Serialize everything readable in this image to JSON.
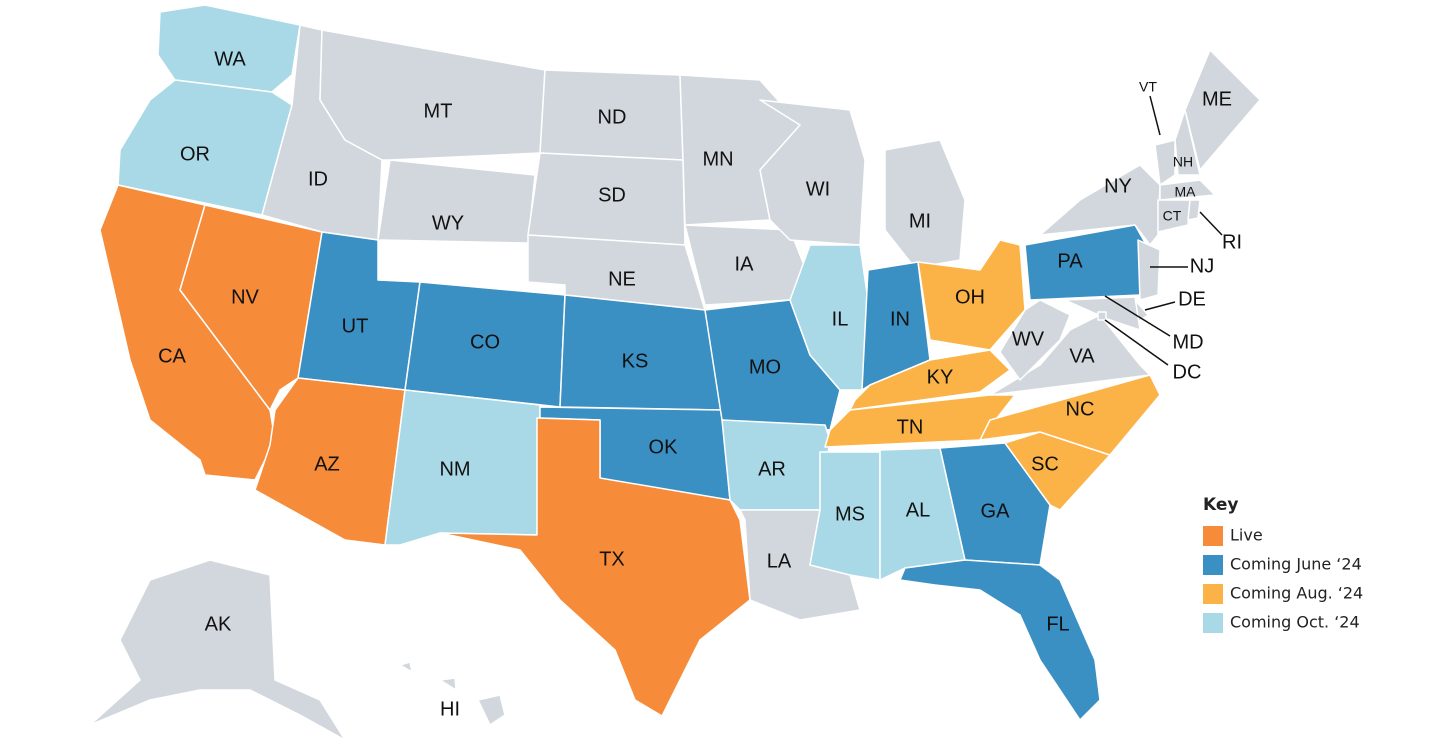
{
  "map": {
    "default_color": "#d1d7dc",
    "states": [
      {
        "label": "WA",
        "status": 3
      },
      {
        "label": "OR",
        "status": 3
      },
      {
        "label": "CA",
        "status": 0
      },
      {
        "label": "NV",
        "status": 0
      },
      {
        "label": "ID",
        "status": null
      },
      {
        "label": "MT",
        "status": null
      },
      {
        "label": "WY",
        "status": null
      },
      {
        "label": "UT",
        "status": 1
      },
      {
        "label": "CO",
        "status": 1
      },
      {
        "label": "AZ",
        "status": 0
      },
      {
        "label": "NM",
        "status": 3
      },
      {
        "label": "ND",
        "status": null
      },
      {
        "label": "SD",
        "status": null
      },
      {
        "label": "NE",
        "status": null
      },
      {
        "label": "KS",
        "status": 1
      },
      {
        "label": "OK",
        "status": 1
      },
      {
        "label": "TX",
        "status": 0
      },
      {
        "label": "MN",
        "status": null
      },
      {
        "label": "IA",
        "status": null
      },
      {
        "label": "MO",
        "status": 1
      },
      {
        "label": "AR",
        "status": 3
      },
      {
        "label": "LA",
        "status": null
      },
      {
        "label": "WI",
        "status": null
      },
      {
        "label": "IL",
        "status": 3
      },
      {
        "label": "MI",
        "status": null
      },
      {
        "label": "IN",
        "status": 1
      },
      {
        "label": "OH",
        "status": 2
      },
      {
        "label": "KY",
        "status": 2
      },
      {
        "label": "TN",
        "status": 2
      },
      {
        "label": "MS",
        "status": 3
      },
      {
        "label": "AL",
        "status": 3
      },
      {
        "label": "GA",
        "status": 1
      },
      {
        "label": "FL",
        "status": 1
      },
      {
        "label": "SC",
        "status": 2
      },
      {
        "label": "NC",
        "status": 2
      },
      {
        "label": "VA",
        "status": null
      },
      {
        "label": "WV",
        "status": null
      },
      {
        "label": "PA",
        "status": 1
      },
      {
        "label": "NY",
        "status": null
      },
      {
        "label": "NJ",
        "status": null
      },
      {
        "label": "DE",
        "status": null
      },
      {
        "label": "MD",
        "status": null
      },
      {
        "label": "VT",
        "status": null
      },
      {
        "label": "NH",
        "status": null
      },
      {
        "label": "ME",
        "status": null
      },
      {
        "label": "MA",
        "status": null
      },
      {
        "label": "CT",
        "status": null
      },
      {
        "label": "RI",
        "status": null
      },
      {
        "label": "AK",
        "status": null
      },
      {
        "label": "HI",
        "status": null
      },
      {
        "label": "DC",
        "status": null
      }
    ],
    "key": {
      "title": "Key",
      "items": [
        {
          "label": "Live",
          "color": "#f68b3a"
        },
        {
          "label": "Coming June ‘24",
          "color": "#3a8fc3"
        },
        {
          "label": "Coming Aug. ‘24",
          "color": "#fbb347"
        },
        {
          "label": "Coming Oct. ‘24",
          "color": "#a9d9e7"
        }
      ]
    }
  }
}
